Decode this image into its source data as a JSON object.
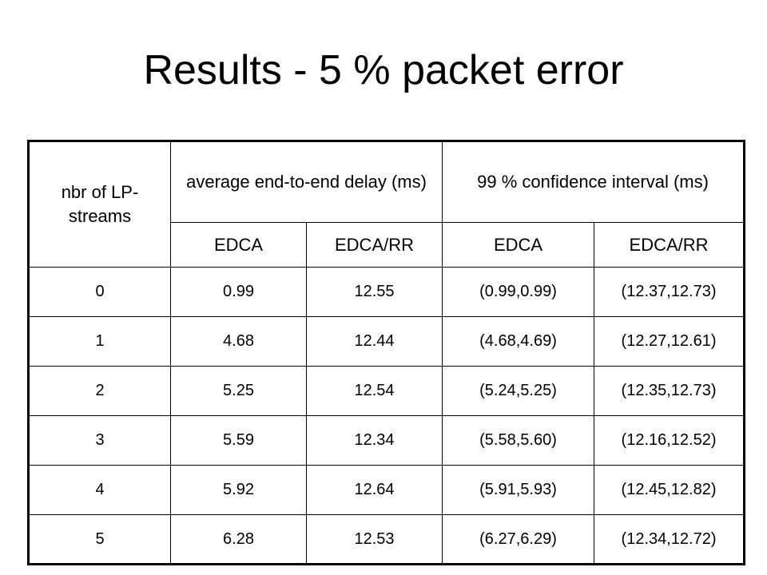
{
  "slide": {
    "title": "Results - 5 % packet error"
  },
  "table": {
    "headers": {
      "col0": "nbr of LP-streams",
      "group1": "average end-to-end delay (ms)",
      "group2": "99 % confidence interval (ms)",
      "sub": [
        "EDCA",
        "EDCA/RR",
        "EDCA",
        "EDCA/RR"
      ]
    },
    "rows": [
      [
        "0",
        "0.99",
        "12.55",
        "(0.99,0.99)",
        "(12.37,12.73)"
      ],
      [
        "1",
        "4.68",
        "12.44",
        "(4.68,4.69)",
        "(12.27,12.61)"
      ],
      [
        "2",
        "5.25",
        "12.54",
        "(5.24,5.25)",
        "(12.35,12.73)"
      ],
      [
        "3",
        "5.59",
        "12.34",
        "(5.58,5.60)",
        "(12.16,12.52)"
      ],
      [
        "4",
        "5.92",
        "12.64",
        "(5.91,5.93)",
        "(12.45,12.82)"
      ],
      [
        "5",
        "6.28",
        "12.53",
        "(6.27,6.29)",
        "(12.34,12.72)"
      ]
    ]
  }
}
